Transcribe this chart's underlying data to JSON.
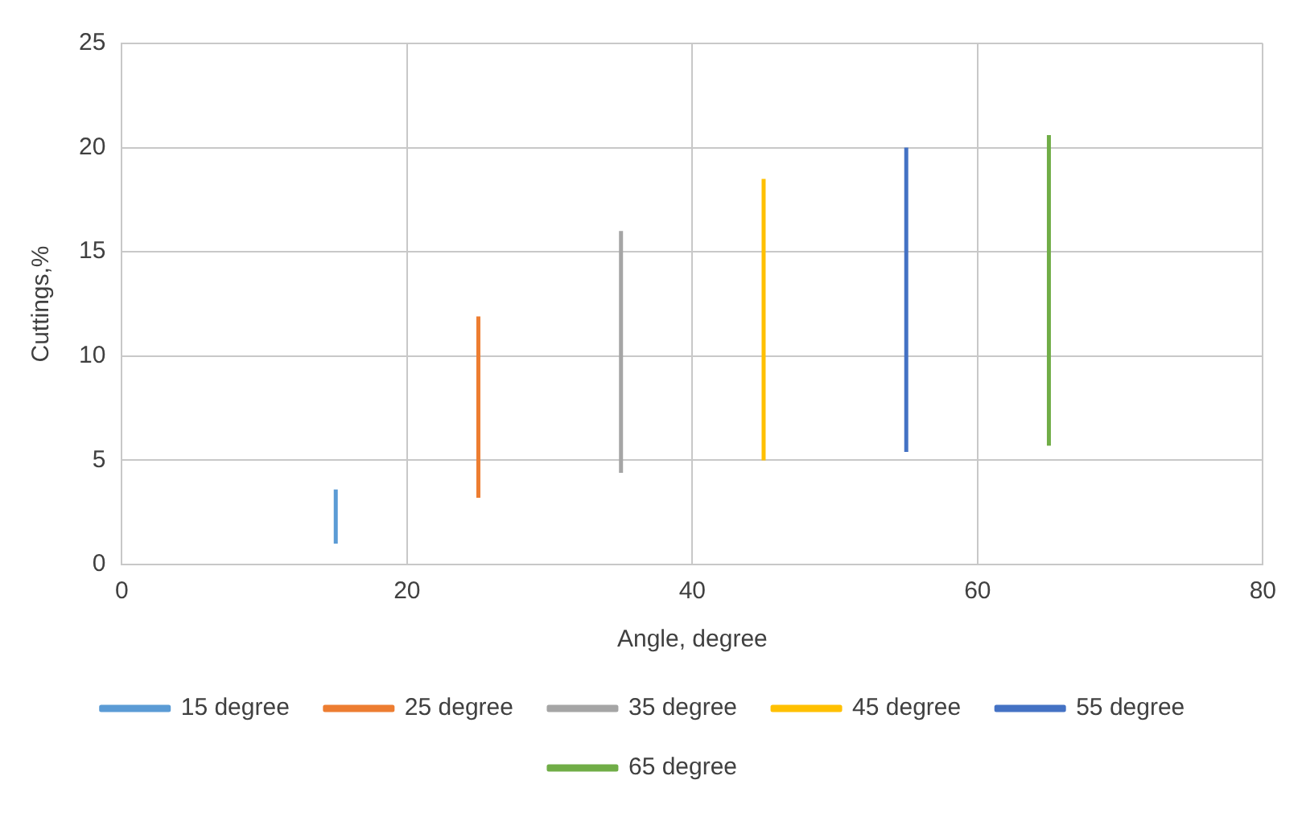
{
  "chart_data": {
    "type": "line",
    "xlabel": "Angle, degree",
    "ylabel": "Cuttings,%",
    "xlim": [
      0,
      80
    ],
    "xticks": [
      0,
      20,
      40,
      60,
      80
    ],
    "ylim": [
      0,
      25
    ],
    "yticks": [
      0,
      5,
      10,
      15,
      20,
      25
    ],
    "grid": true,
    "legend": "bottom",
    "marker": "none",
    "line_style": "solid",
    "series": [
      {
        "name": "15 degree",
        "color": "#5b9bd5",
        "x": [
          15,
          15
        ],
        "values": [
          1.0,
          3.6
        ]
      },
      {
        "name": "25 degree",
        "color": "#ed7d31",
        "x": [
          25,
          25
        ],
        "values": [
          3.2,
          11.9
        ]
      },
      {
        "name": "35 degree",
        "color": "#a5a5a5",
        "x": [
          35,
          35
        ],
        "values": [
          4.4,
          16.0
        ]
      },
      {
        "name": "45 degree",
        "color": "#ffc000",
        "x": [
          45,
          45
        ],
        "values": [
          5.0,
          18.5
        ]
      },
      {
        "name": "55 degree",
        "color": "#4472c4",
        "x": [
          55,
          55
        ],
        "values": [
          5.4,
          20.0
        ]
      },
      {
        "name": "65 degree",
        "color": "#70ad47",
        "x": [
          65,
          65
        ],
        "values": [
          5.7,
          20.6
        ]
      }
    ]
  }
}
